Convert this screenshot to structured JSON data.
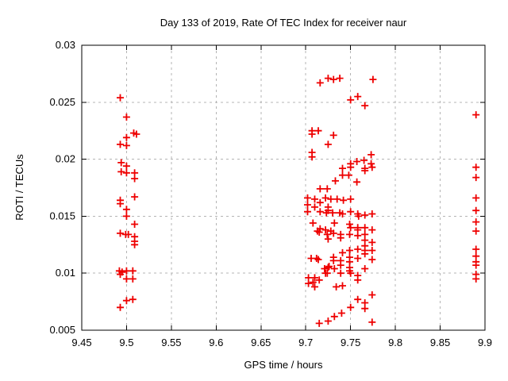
{
  "chart_data": {
    "type": "scatter",
    "title": "Day 133 of 2019, Rate Of TEC Index for receiver naur",
    "xlabel": "GPS time / hours",
    "ylabel": "ROTI / TECUs",
    "xlim": [
      9.45,
      9.9
    ],
    "ylim": [
      0.005,
      0.03
    ],
    "xtick_labels": [
      "9.45",
      "9.5",
      "9.55",
      "9.6",
      "9.65",
      "9.7",
      "9.75",
      "9.8",
      "9.85",
      "9.9"
    ],
    "ytick_labels": [
      "0.005",
      "0.01",
      "0.015",
      "0.02",
      "0.025",
      "0.03"
    ],
    "grid": true,
    "legend": "none",
    "marker": {
      "shape": "plus",
      "color": "#ee0000",
      "size": 9
    },
    "axis_color": "#000000",
    "grid_color": "#b4b4b4",
    "background": "#ffffff",
    "series": [
      {
        "name": "ROTI",
        "points": [
          [
            9.493,
            0.0254
          ],
          [
            9.5,
            0.0237
          ],
          [
            9.508,
            0.0223
          ],
          [
            9.511,
            0.0222
          ],
          [
            9.5,
            0.0219
          ],
          [
            9.493,
            0.0213
          ],
          [
            9.5,
            0.0212
          ],
          [
            9.494,
            0.0197
          ],
          [
            9.5,
            0.0194
          ],
          [
            9.494,
            0.0189
          ],
          [
            9.5,
            0.0188
          ],
          [
            9.509,
            0.0188
          ],
          [
            9.509,
            0.0183
          ],
          [
            9.509,
            0.0167
          ],
          [
            9.493,
            0.0164
          ],
          [
            9.493,
            0.0161
          ],
          [
            9.5,
            0.0156
          ],
          [
            9.5,
            0.015
          ],
          [
            9.509,
            0.0143
          ],
          [
            9.493,
            0.0135
          ],
          [
            9.499,
            0.0134
          ],
          [
            9.502,
            0.0134
          ],
          [
            9.509,
            0.0132
          ],
          [
            9.509,
            0.0128
          ],
          [
            9.509,
            0.0125
          ],
          [
            9.492,
            0.0102
          ],
          [
            9.495,
            0.0101
          ],
          [
            9.5,
            0.0102
          ],
          [
            9.507,
            0.0102
          ],
          [
            9.493,
            0.0099
          ],
          [
            9.5,
            0.0095
          ],
          [
            9.507,
            0.0095
          ],
          [
            9.507,
            0.0077
          ],
          [
            9.5,
            0.0076
          ],
          [
            9.493,
            0.007
          ],
          [
            9.716,
            0.0267
          ],
          [
            9.725,
            0.0271
          ],
          [
            9.731,
            0.027
          ],
          [
            9.738,
            0.0271
          ],
          [
            9.775,
            0.027
          ],
          [
            9.75,
            0.0252
          ],
          [
            9.758,
            0.0255
          ],
          [
            9.766,
            0.0247
          ],
          [
            9.707,
            0.0225
          ],
          [
            9.707,
            0.0222
          ],
          [
            9.714,
            0.0225
          ],
          [
            9.731,
            0.0221
          ],
          [
            9.725,
            0.0213
          ],
          [
            9.707,
            0.0206
          ],
          [
            9.707,
            0.0202
          ],
          [
            9.773,
            0.0204
          ],
          [
            9.75,
            0.0196
          ],
          [
            9.75,
            0.0193
          ],
          [
            9.757,
            0.0198
          ],
          [
            9.765,
            0.0199
          ],
          [
            9.766,
            0.0192
          ],
          [
            9.773,
            0.0196
          ],
          [
            9.774,
            0.0193
          ],
          [
            9.741,
            0.0192
          ],
          [
            9.766,
            0.019
          ],
          [
            9.741,
            0.0186
          ],
          [
            9.748,
            0.0186
          ],
          [
            9.733,
            0.0181
          ],
          [
            9.757,
            0.018
          ],
          [
            9.716,
            0.0174
          ],
          [
            9.724,
            0.0174
          ],
          [
            9.702,
            0.0166
          ],
          [
            9.71,
            0.0165
          ],
          [
            9.722,
            0.0166
          ],
          [
            9.728,
            0.0165
          ],
          [
            9.735,
            0.0165
          ],
          [
            9.742,
            0.0164
          ],
          [
            9.75,
            0.0165
          ],
          [
            9.702,
            0.016
          ],
          [
            9.716,
            0.0162
          ],
          [
            9.725,
            0.0158
          ],
          [
            9.725,
            0.0155
          ],
          [
            9.71,
            0.0158
          ],
          [
            9.702,
            0.0154
          ],
          [
            9.716,
            0.0154
          ],
          [
            9.723,
            0.0153
          ],
          [
            9.73,
            0.0153
          ],
          [
            9.738,
            0.0153
          ],
          [
            9.75,
            0.0154
          ],
          [
            9.741,
            0.0152
          ],
          [
            9.758,
            0.0152
          ],
          [
            9.759,
            0.015
          ],
          [
            9.766,
            0.0151
          ],
          [
            9.774,
            0.0152
          ],
          [
            9.708,
            0.0144
          ],
          [
            9.732,
            0.0144
          ],
          [
            9.749,
            0.0143
          ],
          [
            9.75,
            0.014
          ],
          [
            9.758,
            0.014
          ],
          [
            9.758,
            0.0138
          ],
          [
            9.766,
            0.014
          ],
          [
            9.774,
            0.0138
          ],
          [
            9.716,
            0.0139
          ],
          [
            9.713,
            0.0137
          ],
          [
            9.715,
            0.0136
          ],
          [
            9.722,
            0.0138
          ],
          [
            9.728,
            0.0137
          ],
          [
            9.724,
            0.0134
          ],
          [
            9.731,
            0.0135
          ],
          [
            9.739,
            0.0134
          ],
          [
            9.749,
            0.0134
          ],
          [
            9.758,
            0.0133
          ],
          [
            9.766,
            0.0134
          ],
          [
            9.725,
            0.013
          ],
          [
            9.739,
            0.0131
          ],
          [
            9.766,
            0.0129
          ],
          [
            9.774,
            0.0127
          ],
          [
            9.741,
            0.0118
          ],
          [
            9.749,
            0.012
          ],
          [
            9.758,
            0.0121
          ],
          [
            9.766,
            0.0124
          ],
          [
            9.766,
            0.012
          ],
          [
            9.774,
            0.012
          ],
          [
            9.766,
            0.0117
          ],
          [
            9.706,
            0.0113
          ],
          [
            9.712,
            0.0113
          ],
          [
            9.714,
            0.0112
          ],
          [
            9.731,
            0.0114
          ],
          [
            9.731,
            0.0111
          ],
          [
            9.739,
            0.0111
          ],
          [
            9.739,
            0.0107
          ],
          [
            9.749,
            0.0114
          ],
          [
            9.749,
            0.011
          ],
          [
            9.758,
            0.0113
          ],
          [
            9.774,
            0.0112
          ],
          [
            9.726,
            0.0106
          ],
          [
            9.725,
            0.0105
          ],
          [
            9.732,
            0.0104
          ],
          [
            9.721,
            0.0104
          ],
          [
            9.722,
            0.01
          ],
          [
            9.724,
            0.01
          ],
          [
            9.739,
            0.01
          ],
          [
            9.749,
            0.0105
          ],
          [
            9.749,
            0.0102
          ],
          [
            9.766,
            0.0104
          ],
          [
            9.75,
            0.01
          ],
          [
            9.758,
            0.0098
          ],
          [
            9.703,
            0.0096
          ],
          [
            9.71,
            0.0096
          ],
          [
            9.708,
            0.0092
          ],
          [
            9.703,
            0.0091
          ],
          [
            9.715,
            0.0094
          ],
          [
            9.758,
            0.0094
          ],
          [
            9.71,
            0.0088
          ],
          [
            9.734,
            0.0088
          ],
          [
            9.741,
            0.0089
          ],
          [
            9.774,
            0.0081
          ],
          [
            9.758,
            0.0077
          ],
          [
            9.766,
            0.0074
          ],
          [
            9.766,
            0.0069
          ],
          [
            9.75,
            0.007
          ],
          [
            9.74,
            0.0065
          ],
          [
            9.732,
            0.0062
          ],
          [
            9.725,
            0.0058
          ],
          [
            9.715,
            0.0056
          ],
          [
            9.774,
            0.0057
          ],
          [
            9.89,
            0.0239
          ],
          [
            9.89,
            0.0193
          ],
          [
            9.89,
            0.0184
          ],
          [
            9.89,
            0.0166
          ],
          [
            9.89,
            0.0155
          ],
          [
            9.89,
            0.0145
          ],
          [
            9.89,
            0.0137
          ],
          [
            9.89,
            0.0121
          ],
          [
            9.89,
            0.0115
          ],
          [
            9.89,
            0.011
          ],
          [
            9.89,
            0.0107
          ],
          [
            9.89,
            0.0099
          ],
          [
            9.89,
            0.0095
          ]
        ]
      }
    ]
  }
}
